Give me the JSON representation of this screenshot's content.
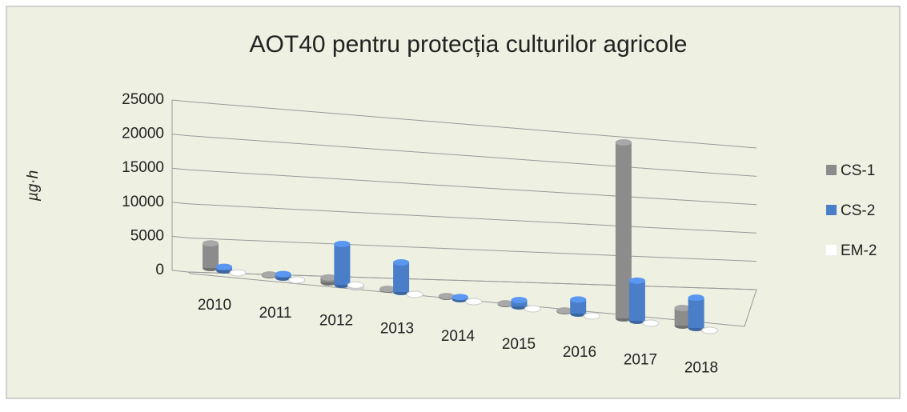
{
  "chart_data": {
    "type": "bar3d",
    "title": "AOT40 pentru protecția culturilor agricole",
    "y_label": "µg·h",
    "categories": [
      "2010",
      "2011",
      "2012",
      "2013",
      "2014",
      "2015",
      "2016",
      "2017",
      "2018"
    ],
    "series": [
      {
        "name": "CS-1",
        "color": "#8c8c8c",
        "values": [
          3500,
          100,
          700,
          100,
          100,
          100,
          100,
          25000,
          2500
        ]
      },
      {
        "name": "CS-2",
        "color": "#4a7ec8",
        "values": [
          500,
          500,
          5800,
          4200,
          300,
          900,
          2000,
          5700,
          4300
        ]
      },
      {
        "name": "EM-2",
        "color": "#ffffff",
        "values": [
          0,
          0,
          300,
          0,
          0,
          0,
          0,
          0,
          0
        ]
      }
    ],
    "ylim": [
      0,
      25000
    ],
    "yticks": [
      0,
      5000,
      10000,
      15000,
      20000,
      25000
    ],
    "grid": true
  }
}
